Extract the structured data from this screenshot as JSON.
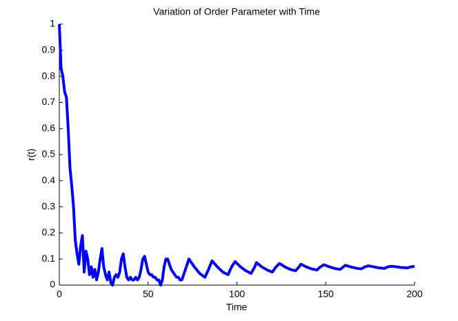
{
  "chart_data": {
    "type": "line",
    "title": "Variation of Order Parameter with Time",
    "x_label": "Time",
    "y_label": "r(t)",
    "xlim": [
      0,
      200
    ],
    "ylim": [
      0,
      1
    ],
    "xticks": [
      0,
      50,
      100,
      150,
      200
    ],
    "yticks": [
      0,
      0.1,
      0.2,
      0.3,
      0.4,
      0.5,
      0.6,
      0.7,
      0.8,
      0.9,
      1
    ],
    "x": [
      0,
      1,
      2,
      3,
      4,
      5,
      6,
      7,
      8,
      9,
      10,
      11,
      12,
      13,
      14,
      15,
      16,
      17,
      18,
      19,
      20,
      21,
      22,
      23,
      24,
      25,
      26,
      27,
      28,
      29,
      30,
      31,
      32,
      33,
      34,
      35,
      36,
      37,
      38,
      39,
      40,
      41,
      42,
      43,
      44,
      45,
      46,
      47,
      48,
      49,
      50,
      51,
      52,
      53,
      54,
      55,
      56,
      57,
      58,
      59,
      60,
      61,
      62,
      63,
      64,
      65,
      66,
      67,
      68,
      69,
      70,
      73,
      76,
      79,
      82,
      84,
      86,
      89,
      92,
      95,
      97,
      99,
      102,
      105,
      108,
      110,
      111,
      114,
      117,
      120,
      122,
      124,
      127,
      130,
      133,
      135,
      136,
      139,
      142,
      145,
      147,
      149,
      152,
      155,
      158,
      160,
      161,
      164,
      167,
      170,
      172,
      174,
      177,
      180,
      183,
      185,
      187,
      190,
      193,
      196,
      198,
      200
    ],
    "series": [
      {
        "name": "r(t)",
        "color": "#0000ff",
        "values": [
          1.0,
          0.83,
          0.8,
          0.74,
          0.72,
          0.6,
          0.45,
          0.38,
          0.3,
          0.17,
          0.12,
          0.08,
          0.15,
          0.19,
          0.05,
          0.13,
          0.1,
          0.04,
          0.07,
          0.03,
          0.06,
          0.02,
          0.05,
          0.1,
          0.14,
          0.07,
          0.04,
          0.02,
          0.05,
          0.01,
          0.0,
          0.03,
          0.04,
          0.03,
          0.05,
          0.1,
          0.12,
          0.07,
          0.03,
          0.02,
          0.03,
          0.02,
          0.02,
          0.03,
          0.02,
          0.03,
          0.06,
          0.1,
          0.11,
          0.08,
          0.05,
          0.04,
          0.04,
          0.03,
          0.03,
          0.02,
          0.02,
          0.0,
          0.02,
          0.07,
          0.1,
          0.1,
          0.08,
          0.06,
          0.05,
          0.04,
          0.03,
          0.03,
          0.02,
          0.02,
          0.04,
          0.1,
          0.07,
          0.045,
          0.03,
          0.06,
          0.093,
          0.07,
          0.05,
          0.04,
          0.07,
          0.09,
          0.07,
          0.055,
          0.045,
          0.07,
          0.086,
          0.07,
          0.058,
          0.05,
          0.07,
          0.083,
          0.07,
          0.06,
          0.055,
          0.07,
          0.08,
          0.07,
          0.062,
          0.058,
          0.07,
          0.078,
          0.07,
          0.064,
          0.06,
          0.07,
          0.076,
          0.07,
          0.065,
          0.062,
          0.07,
          0.074,
          0.07,
          0.066,
          0.064,
          0.07,
          0.072,
          0.07,
          0.067,
          0.066,
          0.07,
          0.072
        ]
      }
    ]
  }
}
